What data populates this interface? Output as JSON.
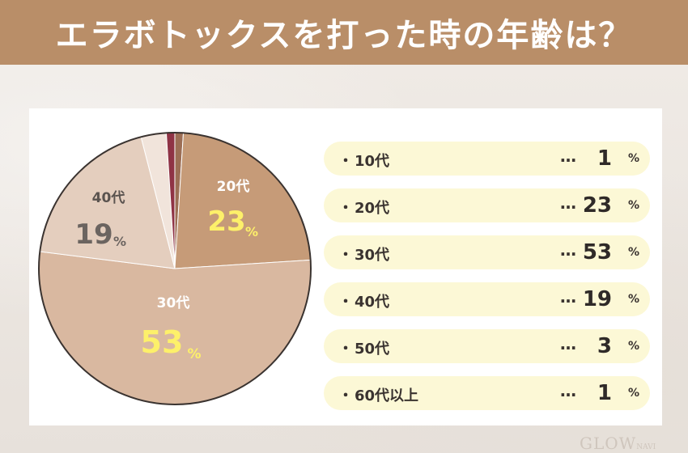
{
  "header": {
    "title": "エラボトックスを打った時の年齢は？"
  },
  "logo": {
    "text": "GLOW",
    "suffix": "NAVI"
  },
  "chart_data": {
    "type": "pie",
    "unit": "%",
    "slices": [
      {
        "label": "10代",
        "value": 1,
        "color": "#9c6e55"
      },
      {
        "label": "20代",
        "value": 23,
        "color": "#c69b78"
      },
      {
        "label": "30代",
        "value": 53,
        "color": "#d9b8a0"
      },
      {
        "label": "40代",
        "value": 19,
        "color": "#e4cebe"
      },
      {
        "label": "50代",
        "value": 3,
        "color": "#f1e4db"
      },
      {
        "label": "60代以上",
        "value": 1,
        "color": "#8f3345"
      }
    ],
    "pie_labels": [
      {
        "label": "20代",
        "value": "23",
        "unit": "%"
      },
      {
        "label": "30代",
        "value": "53",
        "unit": "%"
      },
      {
        "label": "40代",
        "value": "19",
        "unit": "%"
      }
    ]
  },
  "legend": {
    "dots": "…",
    "rows": [
      {
        "label": "10代",
        "value": "1",
        "unit": "%"
      },
      {
        "label": "20代",
        "value": "23",
        "unit": "%"
      },
      {
        "label": "30代",
        "value": "53",
        "unit": "%"
      },
      {
        "label": "40代",
        "value": "19",
        "unit": "%"
      },
      {
        "label": "50代",
        "value": "3",
        "unit": "%"
      },
      {
        "label": "60代以上",
        "value": "1",
        "unit": "%"
      }
    ]
  }
}
